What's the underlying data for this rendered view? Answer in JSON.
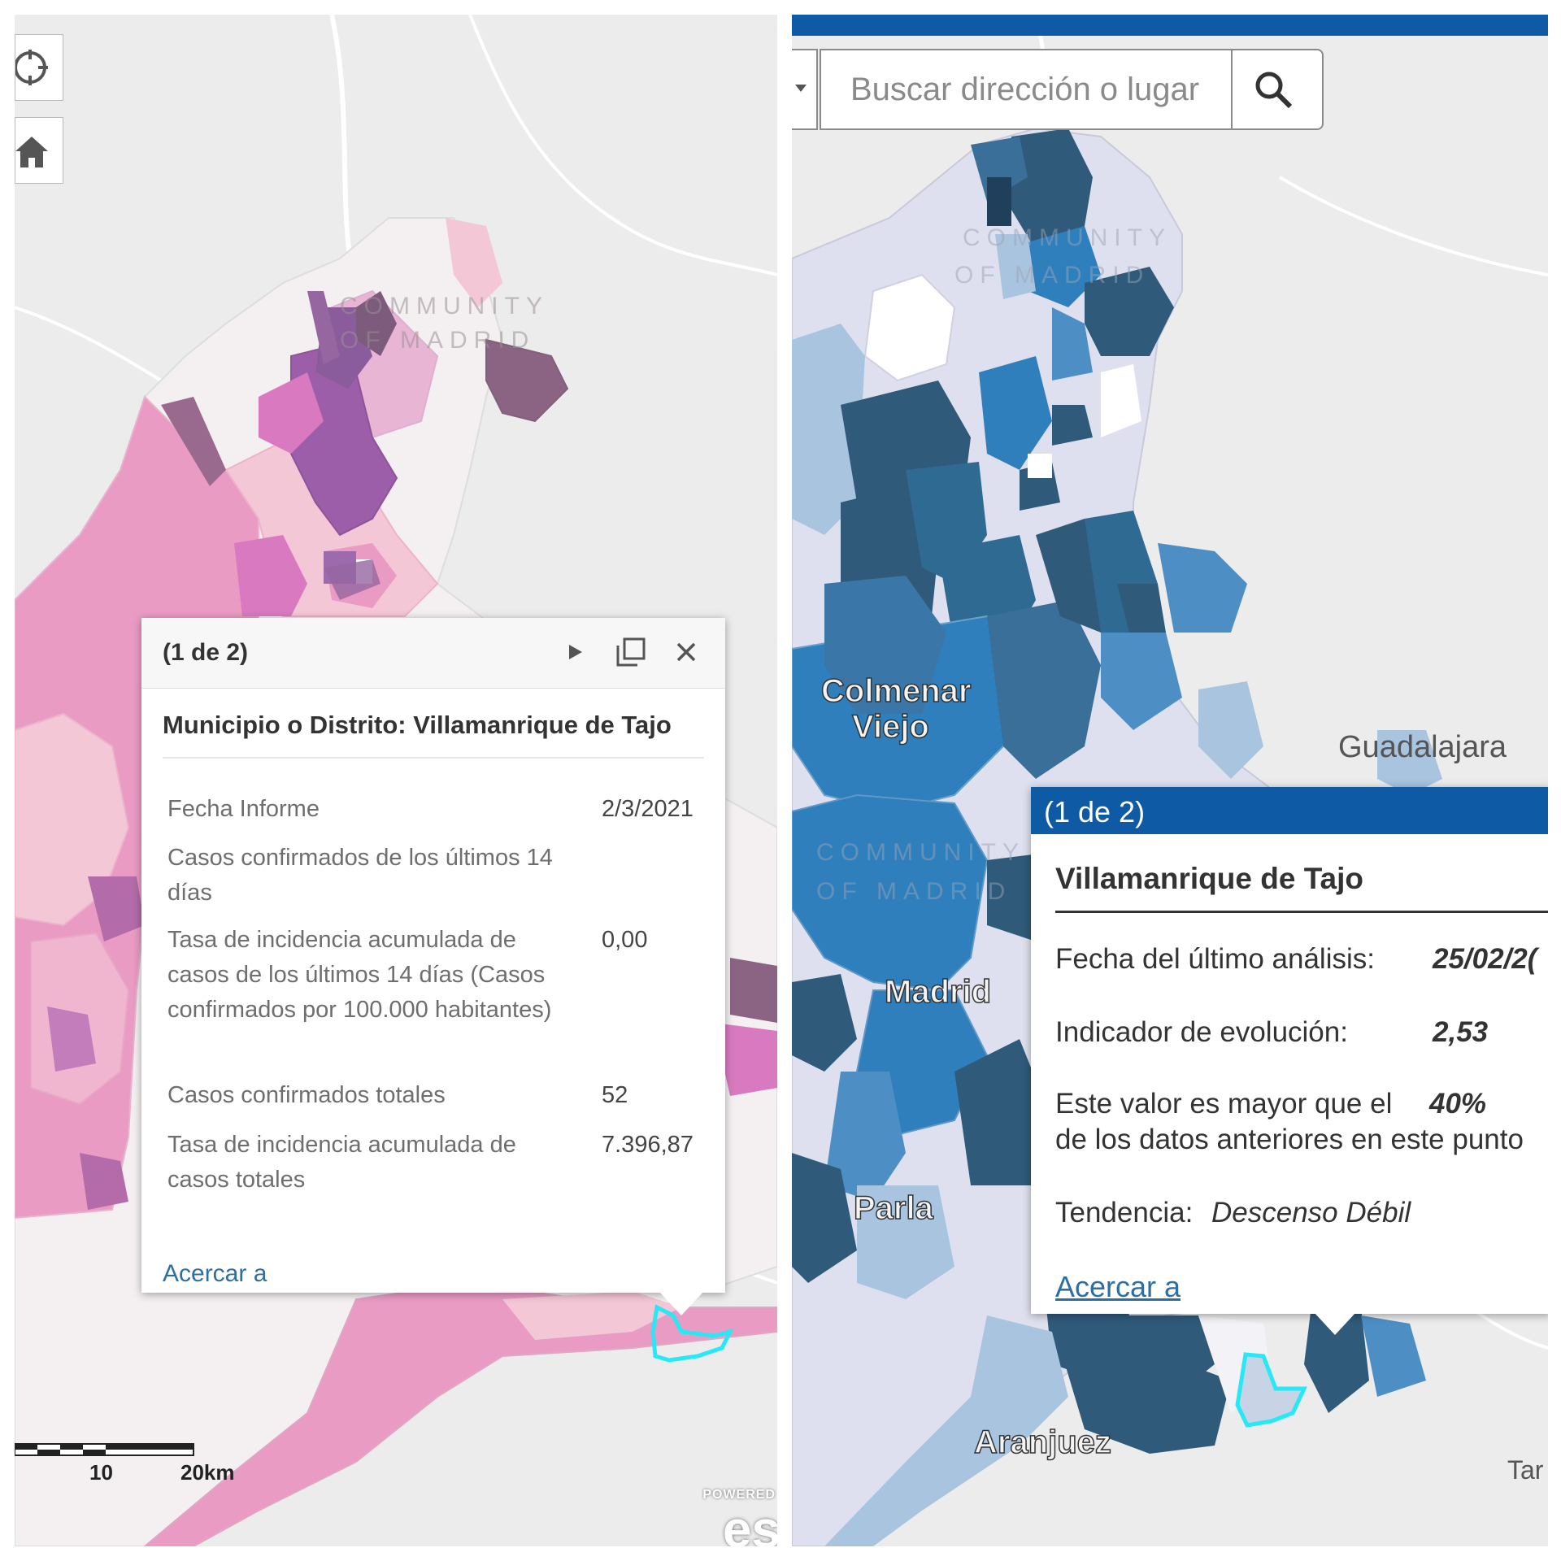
{
  "left_map": {
    "watermark": [
      "COMMUNITY",
      "OF MADRID"
    ],
    "buttons": {
      "locate_icon": "crosshair-icon",
      "home_icon": "home-icon"
    },
    "scale": {
      "label_mid": "10",
      "label_end": "20km"
    },
    "attribution": {
      "powered": "POWERED",
      "logo": "es"
    },
    "colors": {
      "light_pink": "#f3c7d6",
      "pink": "#ea9bc4",
      "magenta": "#d97ac0",
      "purple": "#9c5ea8",
      "dark_mauve": "#8b6484",
      "highlight": "#28e8f5"
    },
    "popup": {
      "count": "(1 de 2)",
      "title": "Municipio o Distrito: Villamanrique de Tajo",
      "rows": [
        {
          "label": "Fecha Informe",
          "value": "2/3/2021"
        },
        {
          "label": "Casos confirmados de los últimos 14 días",
          "value": ""
        },
        {
          "label": "Tasa de incidencia acumulada de casos de los últimos 14 días (Casos confirmados por 100.000 habitantes)",
          "value": "0,00"
        },
        {
          "label": "Casos confirmados totales",
          "value": "52"
        },
        {
          "label": "Tasa de incidencia acumulada de casos totales",
          "value": "7.396,87"
        }
      ],
      "zoom": "Acercar a",
      "icons": [
        "play-icon",
        "maximize-icon",
        "close-icon"
      ]
    }
  },
  "right_map": {
    "search": {
      "placeholder": "Buscar dirección o lugar",
      "icon": "search-icon"
    },
    "watermark_top": [
      "COMMUNITY",
      "OF MADRID"
    ],
    "watermark_mid": [
      "COMMUNITY",
      "OF MADRID"
    ],
    "places": {
      "colmenar": "Colmenar",
      "viejo": "Viejo",
      "guadalajara": "Guadalajara",
      "madrid": "Madrid",
      "parla": "Parla",
      "aranjuez": "Aranjuez",
      "tar": "Tar"
    },
    "colors": {
      "pale": "#dfe0ef",
      "light_blue": "#a9c4df",
      "mid_blue": "#4d8fc5",
      "blue": "#2f7fbd",
      "dark_blue": "#2f5a7a",
      "header": "#0f5aa5",
      "highlight": "#28e8f5"
    },
    "popup": {
      "count": "(1 de 2)",
      "title": "Villamanrique de Tajo",
      "fecha_label": "Fecha del último análisis:",
      "fecha_value": "25/02/2(",
      "indicador_label": "Indicador de evolución:",
      "indicador_value": "2,53",
      "mayor_label": "Este valor es mayor que el",
      "mayor_value": "40%",
      "mayor_cont": "de los datos anteriores en este punto",
      "tendencia_label": "Tendencia:",
      "tendencia_value": "Descenso Débil",
      "zoom": "Acercar a"
    }
  }
}
